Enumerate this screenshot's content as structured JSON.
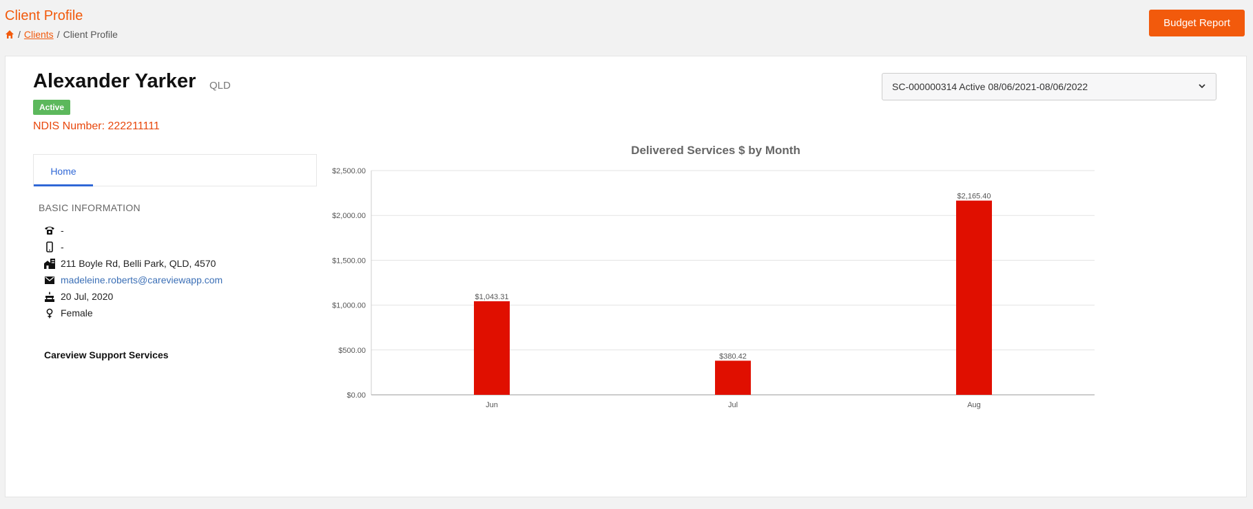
{
  "header": {
    "title": "Client Profile",
    "breadcrumb": {
      "home_icon": "home-icon",
      "clients": "Clients",
      "current": "Client Profile",
      "separator": "/"
    },
    "budget_button": "Budget Report"
  },
  "client": {
    "name": "Alexander Yarker",
    "state": "QLD",
    "status": "Active",
    "ndis": "NDIS Number: 222211111"
  },
  "plan_select": {
    "value": "SC-000000314 Active 08/06/2021-08/06/2022",
    "icon": "chevron-down-icon"
  },
  "tabs": [
    {
      "label": "Home",
      "active": true
    }
  ],
  "basic_info": {
    "heading": "BASIC INFORMATION",
    "phone": "-",
    "mobile": "-",
    "address": "211 Boyle Rd, Belli Park, QLD, 4570",
    "email": "madeleine.roberts@careviewapp.com",
    "dob": "20 Jul, 2020",
    "gender": "Female",
    "organisation": "Careview Support Services"
  },
  "colors": {
    "accent": "#f25a0c",
    "bar": "#e00f00",
    "link": "#3b6fb6",
    "active_badge": "#5cb85c",
    "tab_active": "#2f67d6"
  },
  "chart_data": {
    "type": "bar",
    "title": "Delivered Services $ by Month",
    "categories": [
      "Jun",
      "Jul",
      "Aug"
    ],
    "values": [
      1043.31,
      380.42,
      2165.4
    ],
    "data_labels": [
      "$1,043.31",
      "$380.42",
      "$2,165.40"
    ],
    "ylim": [
      0,
      2500
    ],
    "yticks": [
      0,
      500,
      1000,
      1500,
      2000,
      2500
    ],
    "ytick_labels": [
      "$0.00",
      "$500.00",
      "$1,000.00",
      "$1,500.00",
      "$2,000.00",
      "$2,500.00"
    ],
    "grid": true,
    "legend": "none"
  }
}
